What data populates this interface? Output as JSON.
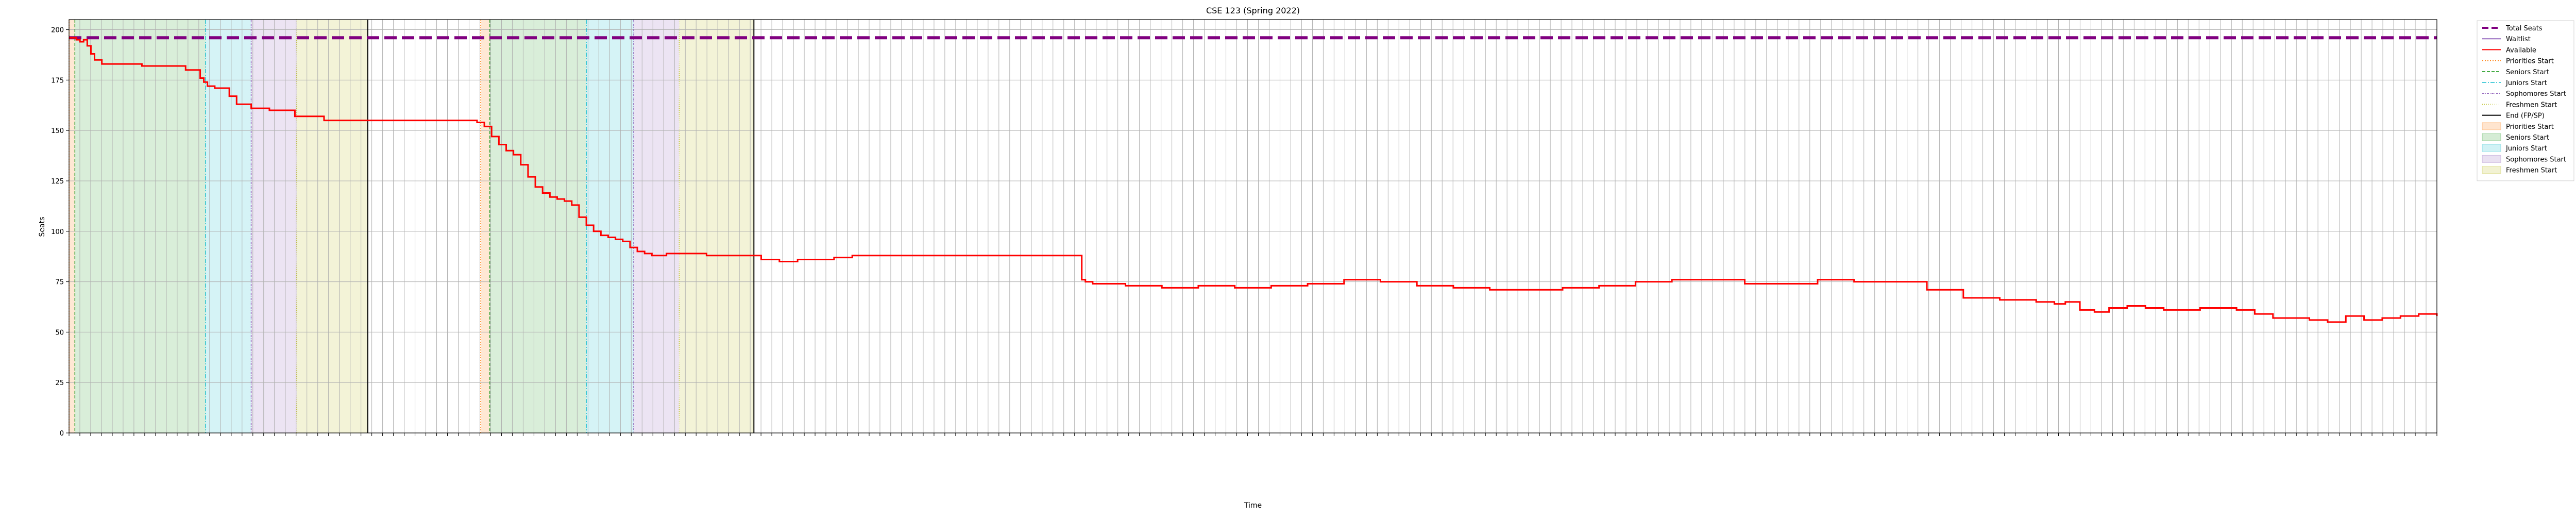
{
  "chart_data": {
    "type": "line",
    "title": "CSE 123 (Spring 2022)",
    "xlabel": "Time",
    "ylabel": "Seats",
    "ylim": [
      0,
      205
    ],
    "yticks": [
      0,
      25,
      50,
      75,
      100,
      125,
      150,
      175,
      200
    ],
    "grid": true,
    "legend_placement": "outside-right-top",
    "x_tick_count": 220,
    "x_tick_labels": [],
    "colors": {
      "total": "#800080",
      "waitlist": "#9467bd",
      "available": "#ff0000",
      "priorities": "#ff7f0e",
      "seniors": "#2ca02c",
      "juniors": "#17becf",
      "sophomores": "#9467bd",
      "freshmen": "#bcbd22",
      "end": "#000000"
    },
    "legend": [
      {
        "label": "Total Seats",
        "kind": "line",
        "color": "#800080",
        "dash": "12,6",
        "width": 4
      },
      {
        "label": "Waitlist",
        "kind": "line",
        "color": "#9467bd",
        "dash": "",
        "width": 2
      },
      {
        "label": "Available",
        "kind": "line",
        "color": "#ff0000",
        "dash": "",
        "width": 2
      },
      {
        "label": "Priorities Start",
        "kind": "line",
        "color": "#ff7f0e",
        "dash": "2,3",
        "width": 1.5
      },
      {
        "label": "Seniors Start",
        "kind": "line",
        "color": "#2ca02c",
        "dash": "6,3",
        "width": 1.5
      },
      {
        "label": "Juniors Start",
        "kind": "line",
        "color": "#17becf",
        "dash": "8,3,2,3",
        "width": 1.5
      },
      {
        "label": "Sophomores Start",
        "kind": "line",
        "color": "#9467bd",
        "dash": "4,2,1,2",
        "width": 1.5
      },
      {
        "label": "Freshmen Start",
        "kind": "line",
        "color": "#bcbd22",
        "dash": "1,3",
        "width": 1.5
      },
      {
        "label": "End (FP/SP)",
        "kind": "line",
        "color": "#000000",
        "dash": "",
        "width": 2
      },
      {
        "label": "Priorities Start",
        "kind": "patch",
        "color": "#ff7f0e"
      },
      {
        "label": "Seniors Start",
        "kind": "patch",
        "color": "#2ca02c"
      },
      {
        "label": "Juniors Start",
        "kind": "patch",
        "color": "#17becf"
      },
      {
        "label": "Sophomores Start",
        "kind": "patch",
        "color": "#9467bd"
      },
      {
        "label": "Freshmen Start",
        "kind": "patch",
        "color": "#bcbd22"
      }
    ],
    "total_seats": 196,
    "enrollment_periods": [
      {
        "priorities": [
          0.0,
          1.6
        ],
        "seniors": [
          1.6,
          37.5
        ],
        "juniors": [
          37.5,
          50.0
        ],
        "sophomores": [
          50.0,
          62.5
        ],
        "freshmen": [
          62.5,
          82.0
        ],
        "end": 82.0
      },
      {
        "priorities": [
          113.0,
          115.5
        ],
        "seniors": [
          115.5,
          142.0
        ],
        "juniors": [
          142.0,
          155.0
        ],
        "sophomores": [
          155.0,
          167.5
        ],
        "freshmen": [
          167.5,
          188.0
        ],
        "end": 188.0
      }
    ],
    "available_series": {
      "name": "Available",
      "x": [
        0,
        1,
        2,
        3,
        4,
        5,
        6,
        7,
        9,
        12,
        16,
        20,
        24,
        26,
        28,
        32,
        36,
        37,
        38,
        40,
        42,
        44,
        46,
        50,
        55,
        58,
        62,
        70,
        80,
        90,
        100,
        110,
        112,
        114,
        116,
        118,
        120,
        122,
        124,
        126,
        128,
        130,
        132,
        134,
        136,
        138,
        140,
        142,
        144,
        146,
        148,
        150,
        152,
        154,
        156,
        158,
        160,
        162,
        164,
        166,
        170,
        175,
        180,
        186,
        190,
        195,
        200,
        205,
        210,
        215,
        220,
        230,
        240,
        250,
        255,
        277,
        278,
        279,
        281,
        285,
        290,
        300,
        310,
        320,
        330,
        340,
        350,
        360,
        370,
        380,
        390,
        400,
        410,
        420,
        430,
        440,
        450,
        460,
        470,
        480,
        490,
        500,
        510,
        520,
        530,
        540,
        545,
        548,
        552,
        556,
        560,
        565,
        570,
        575,
        580,
        585,
        590,
        595,
        600,
        605,
        610,
        615,
        620,
        625,
        630,
        635,
        640,
        645,
        650
      ],
      "values": [
        196,
        196,
        195,
        194,
        195,
        192,
        188,
        185,
        183,
        183,
        183,
        182,
        182,
        182,
        182,
        180,
        176,
        174,
        172,
        171,
        171,
        167,
        163,
        161,
        160,
        160,
        157,
        155,
        155,
        155,
        155,
        155,
        154,
        152,
        147,
        143,
        140,
        138,
        133,
        127,
        122,
        119,
        117,
        116,
        115,
        113,
        107,
        103,
        100,
        98,
        97,
        96,
        95,
        92,
        90,
        89,
        88,
        88,
        89,
        89,
        89,
        88,
        88,
        88,
        86,
        85,
        86,
        86,
        87,
        88,
        88,
        88,
        88,
        88,
        88,
        88,
        76,
        75,
        74,
        74,
        73,
        72,
        73,
        72,
        73,
        74,
        76,
        75,
        73,
        72,
        71,
        71,
        72,
        73,
        75,
        76,
        76,
        74,
        74,
        76,
        75,
        75,
        71,
        67,
        66,
        65,
        64,
        65,
        61,
        60,
        62,
        63,
        62,
        61,
        61,
        62,
        62,
        61,
        59,
        57,
        57,
        56,
        55,
        58,
        56,
        57,
        58,
        59,
        58
      ]
    },
    "x_range": [
      0,
      650
    ]
  }
}
